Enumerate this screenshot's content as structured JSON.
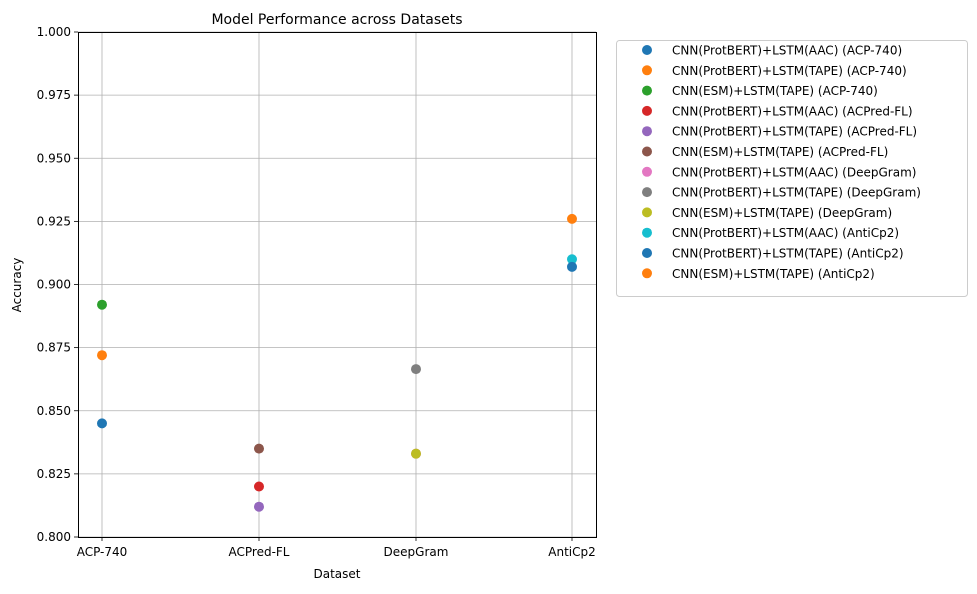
{
  "chart_data": {
    "type": "scatter",
    "title": "Model Performance across Datasets",
    "xlabel": "Dataset",
    "ylabel": "Accuracy",
    "categories": [
      "ACP-740",
      "ACPred-FL",
      "DeepGram",
      "AntiCp2"
    ],
    "ylim": [
      0.8,
      1.0
    ],
    "yticks": [
      "0.800",
      "0.825",
      "0.850",
      "0.875",
      "0.900",
      "0.925",
      "0.950",
      "0.975",
      "1.000"
    ],
    "grid": true,
    "legend_position": "outside-right-top",
    "series": [
      {
        "name": "CNN(ProtBERT)+LSTM(AAC) (ACP-740)",
        "color": "#1f77b4",
        "points": [
          {
            "category": "ACP-740",
            "value": 0.845
          }
        ]
      },
      {
        "name": "CNN(ProtBERT)+LSTM(TAPE) (ACP-740)",
        "color": "#ff7f0e",
        "points": [
          {
            "category": "ACP-740",
            "value": 0.872
          }
        ]
      },
      {
        "name": "CNN(ESM)+LSTM(TAPE) (ACP-740)",
        "color": "#2ca02c",
        "points": [
          {
            "category": "ACP-740",
            "value": 0.892
          }
        ]
      },
      {
        "name": "CNN(ProtBERT)+LSTM(AAC) (ACPred-FL)",
        "color": "#d62728",
        "points": [
          {
            "category": "ACPred-FL",
            "value": 0.82
          }
        ]
      },
      {
        "name": "CNN(ProtBERT)+LSTM(TAPE) (ACPred-FL)",
        "color": "#9467bd",
        "points": [
          {
            "category": "ACPred-FL",
            "value": 0.812
          }
        ]
      },
      {
        "name": "CNN(ESM)+LSTM(TAPE) (ACPred-FL)",
        "color": "#8c564b",
        "points": [
          {
            "category": "ACPred-FL",
            "value": 0.835
          }
        ]
      },
      {
        "name": "CNN(ProtBERT)+LSTM(AAC) (DeepGram)",
        "color": "#e377c2",
        "points": [
          {
            "category": "DeepGram",
            "value": 0.833
          }
        ]
      },
      {
        "name": "CNN(ProtBERT)+LSTM(TAPE) (DeepGram)",
        "color": "#7f7f7f",
        "points": [
          {
            "category": "DeepGram",
            "value": 0.8665
          }
        ]
      },
      {
        "name": "CNN(ESM)+LSTM(TAPE) (DeepGram)",
        "color": "#bcbd22",
        "points": [
          {
            "category": "DeepGram",
            "value": 0.833
          }
        ]
      },
      {
        "name": "CNN(ProtBERT)+LSTM(AAC) (AntiCp2)",
        "color": "#17becf",
        "points": [
          {
            "category": "AntiCp2",
            "value": 0.91
          }
        ]
      },
      {
        "name": "CNN(ProtBERT)+LSTM(TAPE) (AntiCp2)",
        "color": "#1f77b4",
        "points": [
          {
            "category": "AntiCp2",
            "value": 0.907
          }
        ]
      },
      {
        "name": "CNN(ESM)+LSTM(TAPE) (AntiCp2)",
        "color": "#ff7f0e",
        "points": [
          {
            "category": "AntiCp2",
            "value": 0.926
          }
        ]
      }
    ]
  }
}
